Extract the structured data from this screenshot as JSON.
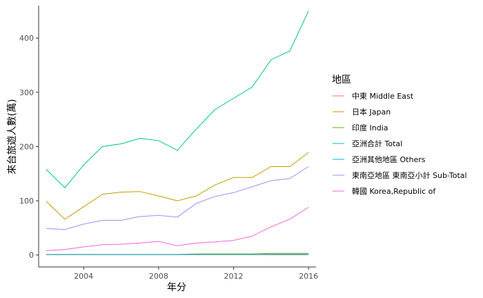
{
  "chart_data": {
    "type": "line",
    "xlabel": "年分",
    "ylabel": "來台旅遊人數(萬)",
    "xlim": [
      2001.6,
      2016.4
    ],
    "ylim": [
      -22,
      460
    ],
    "x_ticks": [
      2004,
      2008,
      2012,
      2016
    ],
    "y_ticks": [
      0,
      100,
      200,
      300,
      400
    ],
    "grid": false,
    "legend": {
      "title": "地區",
      "position": "right"
    },
    "x": [
      2002,
      2003,
      2004,
      2005,
      2006,
      2007,
      2008,
      2009,
      2010,
      2011,
      2012,
      2013,
      2014,
      2015,
      2016
    ],
    "series": [
      {
        "name": "中東 Middle East",
        "color": "#F8766D",
        "values": [
          0.5,
          0.5,
          0.5,
          0.5,
          0.5,
          0.5,
          0.5,
          0.5,
          0.5,
          0.5,
          0.5,
          0.5,
          0.5,
          0.5,
          0.5
        ]
      },
      {
        "name": "日本 Japan",
        "color": "#C49A00",
        "values": [
          99,
          66,
          89,
          112,
          116,
          117,
          109,
          100,
          109,
          129,
          143,
          143,
          163,
          163,
          189
        ]
      },
      {
        "name": "印度 India",
        "color": "#53B400",
        "values": [
          1,
          1,
          1,
          1,
          1,
          1,
          1,
          1,
          2,
          2,
          2,
          2,
          3,
          3,
          3
        ]
      },
      {
        "name": "亞洲合計 Total",
        "color": "#00C094",
        "values": [
          158,
          124,
          166,
          200,
          205,
          215,
          211,
          193,
          232,
          268,
          289,
          310,
          360,
          376,
          450
        ]
      },
      {
        "name": "亞洲其他地區 Others",
        "color": "#00B6EB",
        "values": [
          1,
          1,
          1,
          1,
          1,
          1,
          1,
          1,
          1,
          1,
          1,
          1,
          1.5,
          1.5,
          1.5
        ]
      },
      {
        "name": "東南亞地區 東南亞小計 Sub-Total",
        "color": "#A58AFF",
        "values": [
          49,
          47,
          57,
          64,
          64,
          71,
          73,
          70,
          95,
          108,
          115,
          126,
          137,
          141,
          163
        ]
      },
      {
        "name": "韓國 Korea,Republic of",
        "color": "#FB61D7",
        "values": [
          8,
          10,
          15,
          19,
          20,
          22,
          25,
          17,
          22,
          24,
          27,
          35,
          52,
          66,
          88
        ]
      }
    ]
  }
}
